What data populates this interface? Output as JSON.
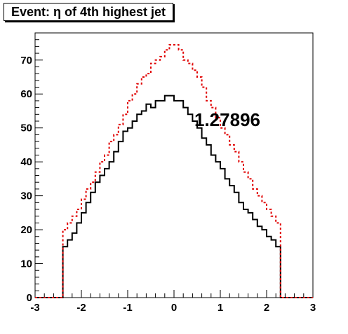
{
  "chart_data": {
    "type": "line",
    "title": "Event: η of 4th highest jet",
    "annotations": [
      "1.27896"
    ],
    "xlim": [
      -3,
      3
    ],
    "ylim": [
      0,
      78
    ],
    "xticks": [
      -3,
      -2,
      -1,
      0,
      1,
      2,
      3
    ],
    "yticks": [
      0,
      10,
      20,
      30,
      40,
      50,
      60,
      70
    ],
    "xlabel": "",
    "ylabel": "",
    "grid": false,
    "bin_edges": [
      -3.0,
      -2.9,
      -2.8,
      -2.7,
      -2.6,
      -2.5,
      -2.4,
      -2.3,
      -2.2,
      -2.1,
      -2.0,
      -1.9,
      -1.8,
      -1.7,
      -1.6,
      -1.5,
      -1.4,
      -1.3,
      -1.2,
      -1.1,
      -1.0,
      -0.9,
      -0.8,
      -0.7,
      -0.6,
      -0.5,
      -0.4,
      -0.3,
      -0.2,
      -0.1,
      0.0,
      0.1,
      0.2,
      0.3,
      0.4,
      0.5,
      0.6,
      0.7,
      0.8,
      0.9,
      1.0,
      1.1,
      1.2,
      1.3,
      1.4,
      1.5,
      1.6,
      1.7,
      1.8,
      1.9,
      2.0,
      2.1,
      2.2,
      2.3,
      2.4,
      2.5,
      2.6,
      2.7,
      2.8,
      2.9,
      3.0
    ],
    "series": [
      {
        "color": "#000000",
        "style": "solid",
        "values": [
          0,
          0,
          0,
          0,
          0,
          0,
          15,
          17,
          19,
          22,
          25,
          28,
          31,
          34,
          36,
          38,
          40,
          43,
          46,
          49,
          50,
          52,
          54,
          55,
          57,
          56,
          58,
          58,
          59.5,
          59.5,
          58,
          58,
          56,
          54,
          52,
          50,
          47,
          45,
          42,
          40,
          38,
          35,
          33,
          31,
          28,
          26,
          25,
          23,
          21,
          20,
          18,
          17,
          15,
          0,
          0,
          0,
          0,
          0,
          0,
          0
        ]
      },
      {
        "color": "#e00000",
        "style": "dashed",
        "values": [
          0,
          0,
          0,
          0,
          0,
          0,
          20,
          22,
          24,
          26,
          29,
          32,
          34,
          37,
          40,
          42,
          46,
          48,
          51,
          54,
          58,
          60,
          63,
          65,
          66,
          69,
          70,
          71,
          73,
          74.5,
          74.5,
          73,
          70,
          69,
          67,
          65,
          62,
          58,
          56,
          53,
          50,
          48,
          45,
          43,
          40,
          37,
          35,
          32,
          30,
          28,
          26,
          24,
          22,
          0,
          0,
          0,
          0,
          0,
          0,
          0
        ]
      }
    ]
  }
}
